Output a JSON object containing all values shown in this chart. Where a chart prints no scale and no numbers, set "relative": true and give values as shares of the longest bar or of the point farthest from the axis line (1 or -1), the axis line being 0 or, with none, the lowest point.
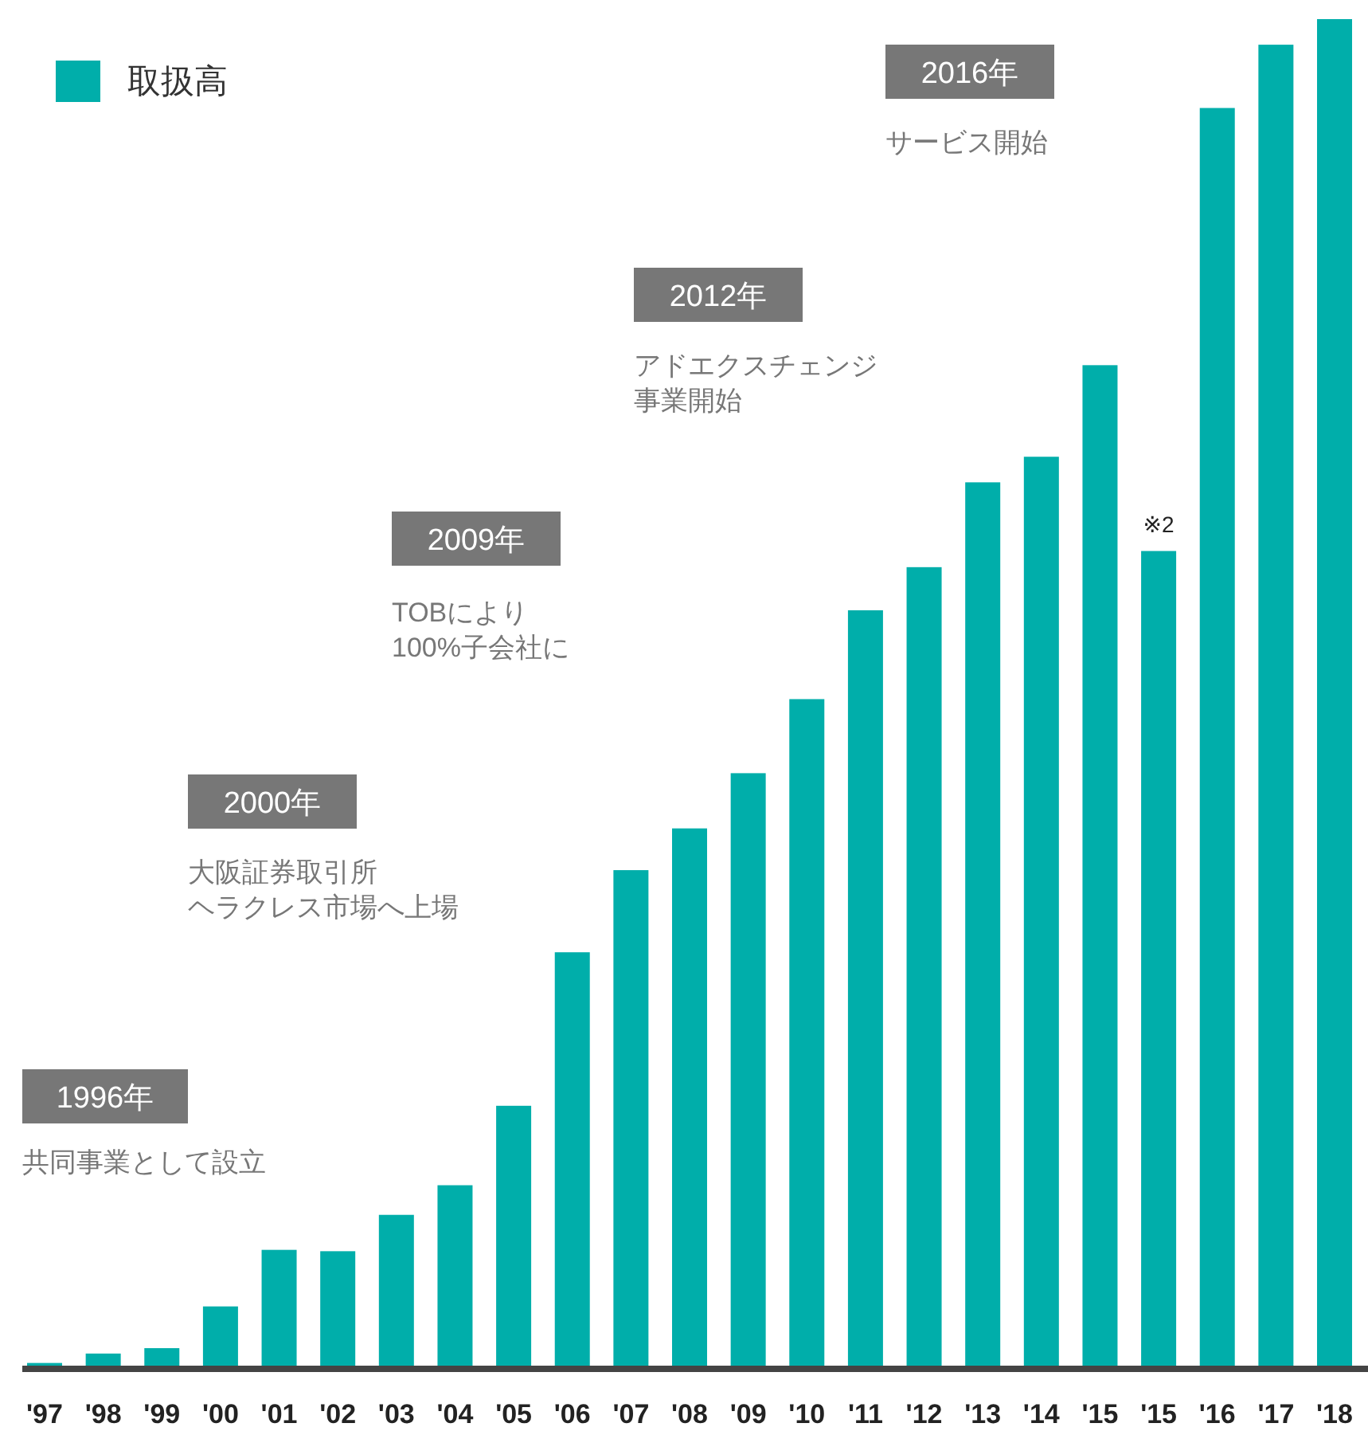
{
  "chart_data": {
    "type": "bar",
    "relative": true,
    "legend": "top left",
    "grid": false,
    "categories": [
      "'97",
      "'98",
      "'99",
      "'00",
      "'01",
      "'02",
      "'03",
      "'04",
      "'05",
      "'06",
      "'07",
      "'08",
      "'09",
      "'10",
      "'11",
      "'12",
      "'13",
      "'14",
      "'15",
      "'15",
      "'16",
      "'17",
      "'18"
    ],
    "series": [
      {
        "name": "取扱高",
        "color": "#00aeaa",
        "values": [
          0.002,
          0.009,
          0.013,
          0.044,
          0.086,
          0.085,
          0.112,
          0.134,
          0.193,
          0.307,
          0.368,
          0.399,
          0.44,
          0.495,
          0.561,
          0.593,
          0.656,
          0.675,
          0.743,
          0.605,
          0.934,
          0.981,
          1
        ]
      }
    ],
    "annotations": [
      "1996年",
      "共同事業として設立",
      "2000年",
      "大阪証券取引所",
      "ヘラクレス市場へ上場",
      "2009年",
      "TOBにより",
      "100%子会社に",
      "2012年",
      "アドエクスチェンジ",
      "事業開始",
      "2016年",
      "サービス開始",
      "※2"
    ]
  }
}
